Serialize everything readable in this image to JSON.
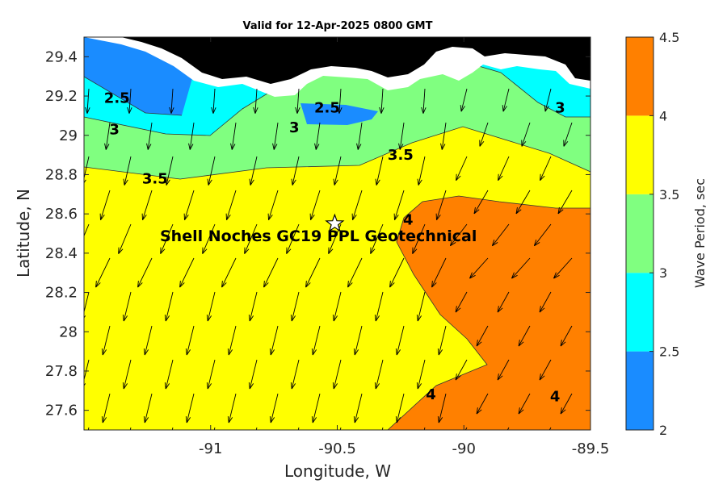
{
  "chart_data": {
    "type": "heatmap",
    "title": "Valid for 12-Apr-2025 0800 GMT",
    "xlabel": "Longitude, W",
    "ylabel": "Latitude, N",
    "xlim": [
      -91.5,
      -89.5
    ],
    "ylim": [
      27.5,
      29.5
    ],
    "xticks": [
      -91,
      -90.5,
      -90,
      -89.5
    ],
    "xtick_labels": [
      "-91",
      "-90.5",
      "-90",
      "-89.5"
    ],
    "yticks": [
      27.6,
      27.8,
      28,
      28.2,
      28.4,
      28.6,
      28.8,
      29,
      29.2,
      29.4
    ],
    "ytick_labels": [
      "27.6",
      "27.8",
      "28",
      "28.2",
      "28.4",
      "28.6",
      "28.8",
      "29",
      "29.2",
      "29.4"
    ],
    "colorbar": {
      "label": "Wave Period, sec",
      "ticks": [
        2,
        2.5,
        3,
        3.5,
        4,
        4.5
      ],
      "tick_labels": [
        "2",
        "2.5",
        "3",
        "3.5",
        "4",
        "4.5"
      ],
      "bands": [
        {
          "min": 2,
          "max": 2.5,
          "color": "#1a8cff"
        },
        {
          "min": 2.5,
          "max": 3,
          "color": "#00ffff"
        },
        {
          "min": 3,
          "max": 3.5,
          "color": "#80ff80"
        },
        {
          "min": 3.5,
          "max": 4,
          "color": "#ffff00"
        },
        {
          "min": 4,
          "max": 4.5,
          "color": "#ff8000"
        }
      ]
    },
    "contour_labels": [
      {
        "text": "2.5",
        "lon": -91.37,
        "lat": 29.19
      },
      {
        "text": "2.5",
        "lon": -90.54,
        "lat": 29.14
      },
      {
        "text": "3",
        "lon": -91.38,
        "lat": 29.03
      },
      {
        "text": "3",
        "lon": -90.67,
        "lat": 29.04
      },
      {
        "text": "3",
        "lon": -89.62,
        "lat": 29.14
      },
      {
        "text": "3.5",
        "lon": -91.22,
        "lat": 28.78
      },
      {
        "text": "3.5",
        "lon": -90.25,
        "lat": 28.9
      },
      {
        "text": "4",
        "lon": -90.22,
        "lat": 28.57
      },
      {
        "text": "4",
        "lon": -90.13,
        "lat": 27.68
      },
      {
        "text": "4",
        "lon": -89.64,
        "lat": 27.67
      }
    ],
    "marker": {
      "label": "Shell Noches   GC19 PPL  Geotechnical",
      "lon": -90.51,
      "lat": 28.55,
      "symbol": "star"
    },
    "colors": {
      "land": "#000000",
      "shoreline": "#ffffff",
      "contour_line": "#333333",
      "arrow": "#000000"
    }
  }
}
